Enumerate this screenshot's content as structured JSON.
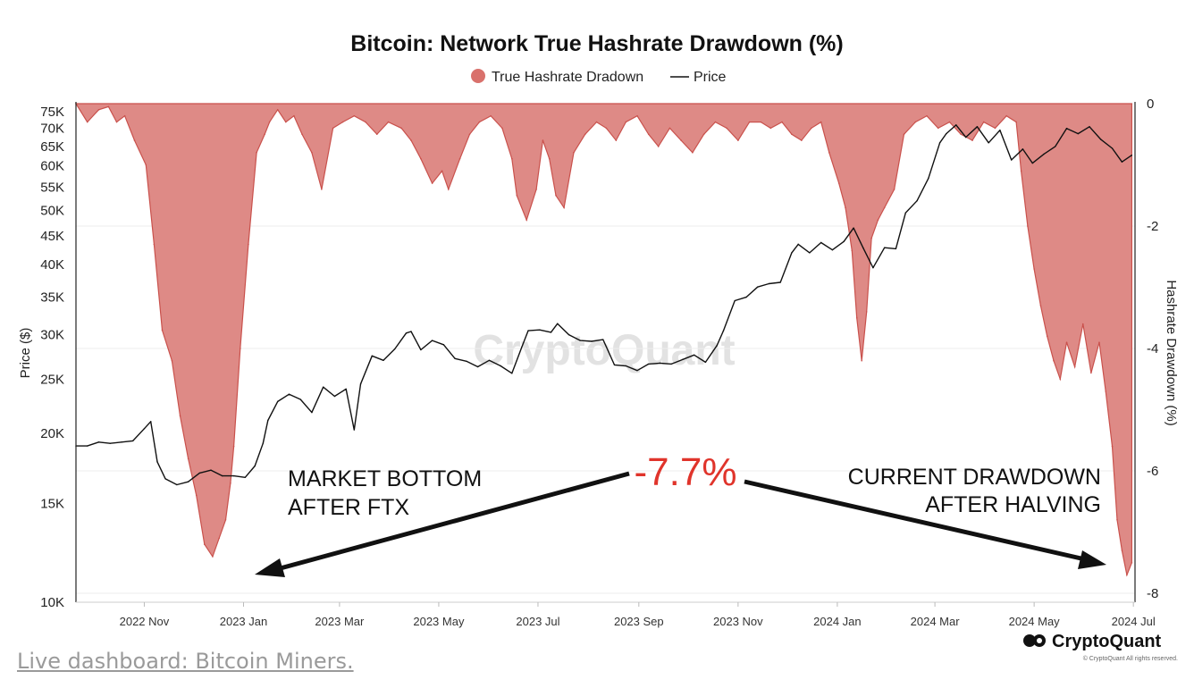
{
  "footer": {
    "link_text": "Live dashboard: Bitcoin Miners."
  },
  "branding": {
    "name": "CryptoQuant",
    "copyright": "© CryptoQuant All rights reserved.",
    "watermark": "CryptoQuant"
  },
  "annotations": {
    "left_line1": "MARKET BOTTOM",
    "left_line2": "AFTER FTX",
    "center_value": "-7.7%",
    "right_line1": "CURRENT DRAWDOWN",
    "right_line2": "AFTER HALVING"
  },
  "colors": {
    "area_fill": "#de8a86",
    "area_stroke": "#c9514c",
    "legend_dot": "#d9716c",
    "price_line": "#111111",
    "highlight": "#e0342b"
  },
  "chart_data": {
    "type": "area",
    "title": "Bitcoin: Network True Hashrate Drawdown (%)",
    "legend_position": "top-center",
    "grid": true,
    "x_ticks": [
      "2022 Nov",
      "2023 Jan",
      "2023 Mar",
      "2023 May",
      "2023 Jul",
      "2023 Sep",
      "2023 Nov",
      "2024 Jan",
      "2024 Mar",
      "2024 May",
      "2024 Jul"
    ],
    "y_left": {
      "label": "Price ($)",
      "scale": "log",
      "ticks": [
        10000,
        15000,
        20000,
        25000,
        30000,
        35000,
        40000,
        45000,
        50000,
        55000,
        60000,
        65000,
        70000,
        75000
      ],
      "tick_labels": [
        "10K",
        "15K",
        "20K",
        "25K",
        "30K",
        "35K",
        "40K",
        "45K",
        "50K",
        "55K",
        "60K",
        "65K",
        "70K",
        "75K"
      ],
      "range": [
        10000,
        77500
      ]
    },
    "y_right": {
      "label": "Hashrate Drawdown (%)",
      "ticks": [
        0,
        -2,
        -4,
        -6,
        -8
      ],
      "tick_labels": [
        "0",
        "-2",
        "-4",
        "-6",
        "-8"
      ],
      "range": [
        -8,
        0
      ]
    },
    "series": [
      {
        "name": "True Hashrate Dradown",
        "axis": "right",
        "type": "area",
        "x": [
          "2022-09-20",
          "2022-09-27",
          "2022-10-04",
          "2022-10-10",
          "2022-10-15",
          "2022-10-20",
          "2022-10-26",
          "2022-11-02",
          "2022-11-07",
          "2022-11-12",
          "2022-11-18",
          "2022-11-23",
          "2022-11-28",
          "2022-12-03",
          "2022-12-08",
          "2022-12-13",
          "2022-12-17",
          "2022-12-21",
          "2022-12-24",
          "2022-12-26",
          "2022-12-30",
          "2023-01-04",
          "2023-01-09",
          "2023-01-14",
          "2023-01-17",
          "2023-01-22",
          "2023-01-27",
          "2023-02-01",
          "2023-02-06",
          "2023-02-12",
          "2023-02-18",
          "2023-02-25",
          "2023-03-03",
          "2023-03-10",
          "2023-03-17",
          "2023-03-24",
          "2023-03-31",
          "2023-04-08",
          "2023-04-14",
          "2023-04-20",
          "2023-04-27",
          "2023-05-03",
          "2023-05-07",
          "2023-05-14",
          "2023-05-20",
          "2023-05-26",
          "2023-06-02",
          "2023-06-09",
          "2023-06-15",
          "2023-06-18",
          "2023-06-24",
          "2023-06-30",
          "2023-07-04",
          "2023-07-08",
          "2023-07-12",
          "2023-07-17",
          "2023-07-23",
          "2023-07-30",
          "2023-08-06",
          "2023-08-12",
          "2023-08-18",
          "2023-08-24",
          "2023-08-31",
          "2023-09-07",
          "2023-09-13",
          "2023-09-20",
          "2023-09-27",
          "2023-10-04",
          "2023-10-11",
          "2023-10-18",
          "2023-10-25",
          "2023-11-01",
          "2023-11-08",
          "2023-11-15",
          "2023-11-21",
          "2023-11-28",
          "2023-12-04",
          "2023-12-10",
          "2023-12-16",
          "2023-12-22",
          "2023-12-27",
          "2024-01-02",
          "2024-01-06",
          "2024-01-10",
          "2024-01-13",
          "2024-01-16",
          "2024-01-19",
          "2024-01-22",
          "2024-01-26",
          "2024-01-30",
          "2024-02-05",
          "2024-02-11",
          "2024-02-18",
          "2024-02-25",
          "2024-03-03",
          "2024-03-10",
          "2024-03-17",
          "2024-03-24",
          "2024-03-31",
          "2024-04-07",
          "2024-04-14",
          "2024-04-20",
          "2024-04-23",
          "2024-04-27",
          "2024-05-01",
          "2024-05-05",
          "2024-05-09",
          "2024-05-13",
          "2024-05-17",
          "2024-05-21",
          "2024-05-26",
          "2024-05-31",
          "2024-06-05",
          "2024-06-10",
          "2024-06-14",
          "2024-06-18",
          "2024-06-21",
          "2024-06-24",
          "2024-06-27",
          "2024-06-30"
        ],
        "values": [
          0,
          -0.3,
          -0.1,
          -0.05,
          -0.3,
          -0.2,
          -0.6,
          -1.0,
          -2.3,
          -3.7,
          -4.2,
          -5.1,
          -5.8,
          -6.4,
          -7.2,
          -7.4,
          -7.1,
          -6.8,
          -6.2,
          -5.6,
          -4.0,
          -2.3,
          -0.8,
          -0.5,
          -0.3,
          -0.1,
          -0.3,
          -0.2,
          -0.5,
          -0.8,
          -1.4,
          -0.4,
          -0.3,
          -0.2,
          -0.3,
          -0.5,
          -0.3,
          -0.4,
          -0.6,
          -0.9,
          -1.3,
          -1.1,
          -1.4,
          -0.9,
          -0.5,
          -0.3,
          -0.2,
          -0.4,
          -0.9,
          -1.5,
          -1.9,
          -1.4,
          -0.6,
          -0.9,
          -1.5,
          -1.7,
          -0.8,
          -0.5,
          -0.3,
          -0.4,
          -0.6,
          -0.3,
          -0.2,
          -0.5,
          -0.7,
          -0.4,
          -0.6,
          -0.8,
          -0.5,
          -0.3,
          -0.4,
          -0.6,
          -0.3,
          -0.3,
          -0.4,
          -0.3,
          -0.5,
          -0.6,
          -0.4,
          -0.3,
          -0.8,
          -1.3,
          -1.7,
          -2.4,
          -3.5,
          -4.2,
          -3.4,
          -2.2,
          -1.9,
          -1.7,
          -1.4,
          -0.5,
          -0.3,
          -0.2,
          -0.4,
          -0.3,
          -0.5,
          -0.6,
          -0.3,
          -0.4,
          -0.2,
          -0.3,
          -1.1,
          -2.0,
          -2.7,
          -3.3,
          -3.8,
          -4.2,
          -4.5,
          -3.9,
          -4.3,
          -3.6,
          -4.4,
          -3.9,
          -4.7,
          -5.6,
          -6.8,
          -7.3,
          -7.7,
          -7.5
        ]
      },
      {
        "name": "Price",
        "axis": "left",
        "type": "line",
        "x": [
          "2022-09-20",
          "2022-09-27",
          "2022-10-04",
          "2022-10-11",
          "2022-10-18",
          "2022-10-25",
          "2022-11-01",
          "2022-11-05",
          "2022-11-09",
          "2022-11-14",
          "2022-11-21",
          "2022-11-28",
          "2022-12-05",
          "2022-12-12",
          "2022-12-19",
          "2022-12-26",
          "2023-01-02",
          "2023-01-08",
          "2023-01-13",
          "2023-01-16",
          "2023-01-22",
          "2023-01-29",
          "2023-02-05",
          "2023-02-12",
          "2023-02-19",
          "2023-02-26",
          "2023-03-05",
          "2023-03-10",
          "2023-03-14",
          "2023-03-21",
          "2023-03-28",
          "2023-04-04",
          "2023-04-11",
          "2023-04-14",
          "2023-04-20",
          "2023-04-27",
          "2023-05-04",
          "2023-05-11",
          "2023-05-18",
          "2023-05-25",
          "2023-06-01",
          "2023-06-08",
          "2023-06-15",
          "2023-06-21",
          "2023-06-25",
          "2023-07-02",
          "2023-07-09",
          "2023-07-13",
          "2023-07-20",
          "2023-07-27",
          "2023-08-03",
          "2023-08-10",
          "2023-08-17",
          "2023-08-24",
          "2023-08-31",
          "2023-09-07",
          "2023-09-14",
          "2023-09-21",
          "2023-09-28",
          "2023-10-05",
          "2023-10-12",
          "2023-10-19",
          "2023-10-23",
          "2023-10-30",
          "2023-11-06",
          "2023-11-13",
          "2023-11-20",
          "2023-11-27",
          "2023-12-04",
          "2023-12-08",
          "2023-12-15",
          "2023-12-22",
          "2023-12-29",
          "2024-01-05",
          "2024-01-11",
          "2024-01-17",
          "2024-01-23",
          "2024-01-30",
          "2024-02-06",
          "2024-02-12",
          "2024-02-19",
          "2024-02-26",
          "2024-03-04",
          "2024-03-08",
          "2024-03-14",
          "2024-03-20",
          "2024-03-27",
          "2024-04-03",
          "2024-04-10",
          "2024-04-17",
          "2024-04-24",
          "2024-04-30",
          "2024-05-07",
          "2024-05-14",
          "2024-05-21",
          "2024-05-28",
          "2024-06-04",
          "2024-06-11",
          "2024-06-18",
          "2024-06-24",
          "2024-06-30"
        ],
        "values": [
          19000,
          19000,
          19300,
          19200,
          19300,
          19400,
          20400,
          21000,
          17800,
          16600,
          16200,
          16400,
          17000,
          17200,
          16800,
          16800,
          16700,
          17500,
          19200,
          21100,
          22800,
          23500,
          23000,
          21800,
          24200,
          23300,
          24000,
          20300,
          24500,
          27500,
          27000,
          28300,
          30200,
          30400,
          28200,
          29300,
          28800,
          27200,
          26900,
          26300,
          27000,
          26400,
          25600,
          28500,
          30500,
          30600,
          30300,
          31400,
          30000,
          29300,
          29200,
          29400,
          26500,
          26400,
          25900,
          26600,
          26700,
          26600,
          27100,
          27600,
          26800,
          28700,
          30500,
          34500,
          35000,
          36500,
          37000,
          37200,
          42000,
          43500,
          42000,
          43800,
          42500,
          44000,
          46500,
          42800,
          39500,
          42900,
          42700,
          49500,
          52000,
          57000,
          66000,
          68500,
          71000,
          67500,
          70500,
          66000,
          69500,
          61500,
          64300,
          60700,
          63000,
          65000,
          70000,
          68500,
          70500,
          66900,
          64500,
          61000,
          62700
        ]
      }
    ]
  }
}
